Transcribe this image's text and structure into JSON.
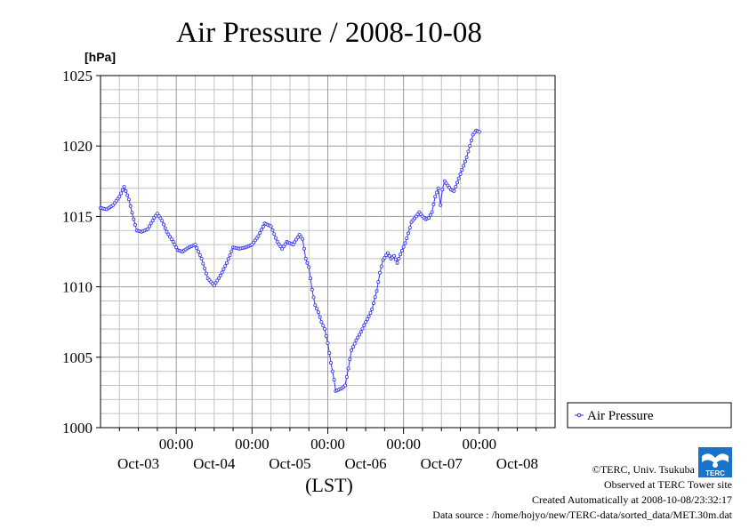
{
  "chart_data": {
    "type": "line",
    "title": "Air Pressure / 2008-10-08",
    "ylabel_unit": "[hPa]",
    "xlabel": "(LST)",
    "ylim": [
      1000,
      1025
    ],
    "yticks": [
      "1000",
      "1005",
      "1010",
      "1015",
      "1020",
      "1025"
    ],
    "xlim_hours": [
      0,
      144
    ],
    "x_time_labels": [
      "00:00",
      "00:00",
      "00:00",
      "00:00",
      "00:00"
    ],
    "x_date_labels": [
      "Oct-03",
      "Oct-04",
      "Oct-05",
      "Oct-06",
      "Oct-07",
      "Oct-08"
    ],
    "grid": true,
    "legend_position": "right",
    "series": [
      {
        "name": "Air Pressure",
        "color": "#3333ee",
        "marker": "open-circle",
        "points_hours_hpa": [
          [
            0,
            1015.6
          ],
          [
            2,
            1015.5
          ],
          [
            4,
            1015.8
          ],
          [
            6,
            1016.4
          ],
          [
            7.5,
            1017.1
          ],
          [
            9,
            1016.2
          ],
          [
            10.5,
            1014.8
          ],
          [
            11.5,
            1014.0
          ],
          [
            13,
            1013.9
          ],
          [
            15,
            1014.1
          ],
          [
            17,
            1014.9
          ],
          [
            18,
            1015.2
          ],
          [
            19.5,
            1014.7
          ],
          [
            21,
            1013.9
          ],
          [
            23,
            1013.2
          ],
          [
            24.5,
            1012.6
          ],
          [
            26,
            1012.5
          ],
          [
            28,
            1012.8
          ],
          [
            30,
            1013.0
          ],
          [
            32,
            1012.0
          ],
          [
            34,
            1010.6
          ],
          [
            36,
            1010.1
          ],
          [
            38,
            1010.8
          ],
          [
            40,
            1011.7
          ],
          [
            42,
            1012.8
          ],
          [
            44,
            1012.7
          ],
          [
            46,
            1012.8
          ],
          [
            48,
            1013.0
          ],
          [
            50,
            1013.6
          ],
          [
            52,
            1014.5
          ],
          [
            54,
            1014.3
          ],
          [
            56,
            1013.2
          ],
          [
            57.5,
            1012.7
          ],
          [
            59,
            1013.2
          ],
          [
            61,
            1013.0
          ],
          [
            63,
            1013.7
          ],
          [
            64,
            1013.4
          ],
          [
            65,
            1012.0
          ],
          [
            66,
            1011.4
          ],
          [
            67,
            1009.8
          ],
          [
            68,
            1008.7
          ],
          [
            69,
            1008.2
          ],
          [
            70,
            1007.5
          ],
          [
            71,
            1007.0
          ],
          [
            72,
            1006.0
          ],
          [
            73,
            1004.6
          ],
          [
            74,
            1003.4
          ],
          [
            74.5,
            1002.6
          ],
          [
            75.5,
            1002.7
          ],
          [
            76.5,
            1002.8
          ],
          [
            77.5,
            1003.0
          ],
          [
            78.5,
            1004.2
          ],
          [
            79.5,
            1005.5
          ],
          [
            81,
            1006.2
          ],
          [
            82.5,
            1006.8
          ],
          [
            84,
            1007.5
          ],
          [
            85,
            1007.9
          ],
          [
            86,
            1008.4
          ],
          [
            87.5,
            1009.7
          ],
          [
            88.5,
            1011.0
          ],
          [
            89.5,
            1011.9
          ],
          [
            91,
            1012.4
          ],
          [
            92,
            1012.0
          ],
          [
            93,
            1012.2
          ],
          [
            94,
            1011.7
          ],
          [
            95,
            1012.3
          ],
          [
            96.5,
            1013.1
          ],
          [
            97.5,
            1013.8
          ],
          [
            98.5,
            1014.6
          ],
          [
            100,
            1015.0
          ],
          [
            101,
            1015.3
          ],
          [
            102,
            1015.0
          ],
          [
            103,
            1014.8
          ],
          [
            104,
            1014.9
          ],
          [
            105,
            1015.3
          ],
          [
            106,
            1016.4
          ],
          [
            107,
            1017.0
          ],
          [
            107.7,
            1015.8
          ],
          [
            108.3,
            1016.9
          ],
          [
            109,
            1017.5
          ],
          [
            110,
            1017.2
          ],
          [
            111,
            1016.9
          ],
          [
            112,
            1016.8
          ],
          [
            113,
            1017.4
          ],
          [
            114,
            1018.0
          ],
          [
            115,
            1018.6
          ],
          [
            116,
            1019.2
          ],
          [
            117,
            1020.0
          ],
          [
            118,
            1020.8
          ],
          [
            119,
            1021.1
          ],
          [
            120,
            1021.0
          ]
        ]
      }
    ]
  },
  "credits": {
    "copyright": "©TERC, Univ. Tsukuba",
    "observed": "Observed at TERC Tower site",
    "created": "Created Automatically at 2008-10-08/23:32:17",
    "source": "Data source : /home/hojyo/new/TERC-data/sorted_data/MET.30m.dat",
    "logo_text": "TERC"
  }
}
